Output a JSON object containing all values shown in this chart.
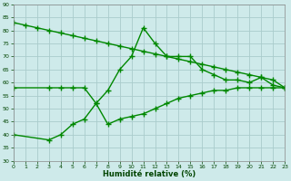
{
  "title": "",
  "xlabel": "Humidité relative (%)",
  "ylabel": "",
  "background_color": "#ceeaea",
  "grid_color": "#aacccc",
  "line_color": "#008800",
  "xlim": [
    0,
    23
  ],
  "ylim": [
    30,
    90
  ],
  "yticks": [
    30,
    35,
    40,
    45,
    50,
    55,
    60,
    65,
    70,
    75,
    80,
    85,
    90
  ],
  "xticks": [
    0,
    1,
    2,
    3,
    4,
    5,
    6,
    7,
    8,
    9,
    10,
    11,
    12,
    13,
    14,
    15,
    16,
    17,
    18,
    19,
    20,
    21,
    22,
    23
  ],
  "series1_x": [
    0,
    1,
    2,
    3,
    4,
    5,
    6,
    7,
    8,
    9,
    10,
    11,
    12,
    13,
    14,
    15,
    16,
    17,
    18,
    19,
    20,
    21,
    22,
    23
  ],
  "series1_y": [
    83,
    82,
    81,
    80,
    79,
    78,
    77,
    76,
    75,
    74,
    73,
    72,
    71,
    70,
    69,
    68,
    67,
    66,
    65,
    64,
    63,
    62,
    61,
    58
  ],
  "series2_x": [
    0,
    3,
    4,
    5,
    6,
    7,
    8,
    9,
    10,
    11,
    12,
    13,
    14,
    15,
    16,
    17,
    18,
    19,
    20,
    21,
    22,
    23
  ],
  "series2_y": [
    58,
    58,
    58,
    58,
    58,
    52,
    57,
    65,
    70,
    81,
    75,
    70,
    70,
    70,
    65,
    63,
    61,
    61,
    60,
    62,
    59,
    58
  ],
  "series3_x": [
    0,
    3,
    4,
    5,
    6,
    7,
    8,
    9,
    10,
    11,
    12,
    13,
    14,
    15,
    16,
    17,
    18,
    19,
    20,
    21,
    22,
    23
  ],
  "series3_y": [
    40,
    38,
    40,
    44,
    46,
    52,
    44,
    46,
    47,
    48,
    50,
    52,
    54,
    55,
    56,
    57,
    57,
    58,
    58,
    58,
    58,
    58
  ],
  "marker": "P",
  "marker_size": 3,
  "linewidth": 1.0
}
